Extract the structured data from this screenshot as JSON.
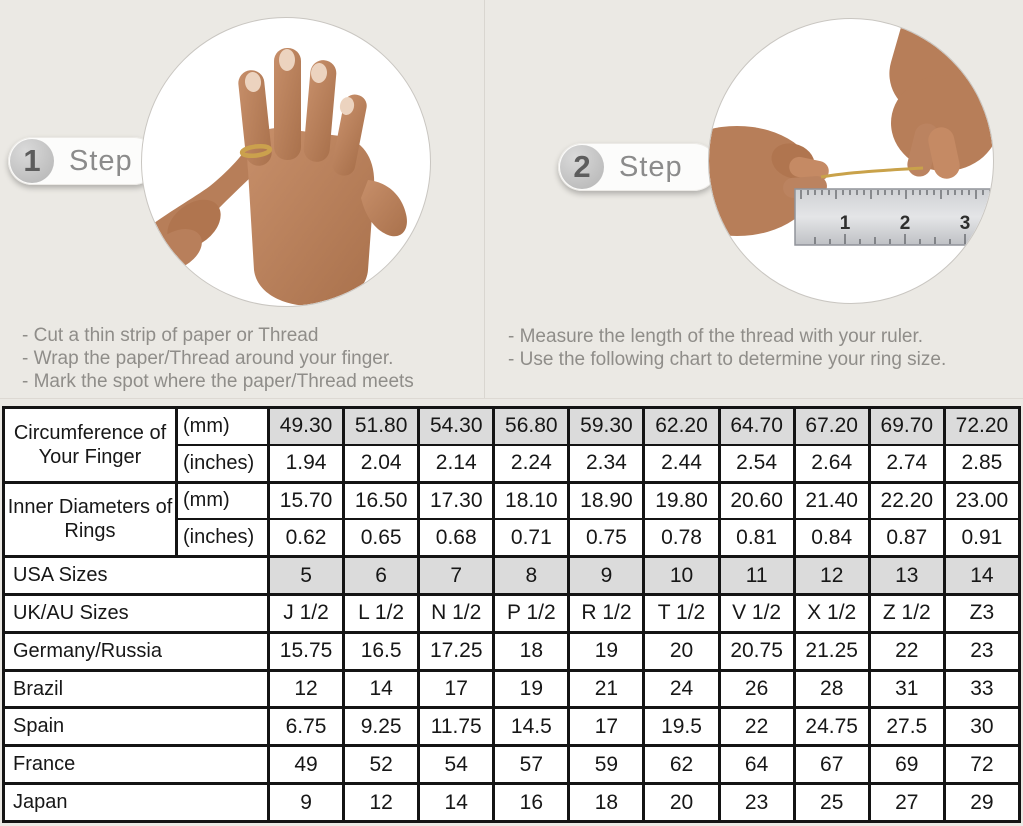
{
  "steps": [
    {
      "number": "1",
      "label": "Step",
      "instructions": [
        "-  Cut a thin strip of paper or Thread",
        "-  Wrap the paper/Thread around your finger.",
        "-  Mark the spot where the paper/Thread meets"
      ]
    },
    {
      "number": "2",
      "label": "Step",
      "instructions": [
        "-  Measure the length of the thread with your ruler.",
        "-  Use the following chart to determine your ring size."
      ]
    }
  ],
  "illustrations": {
    "step1": {
      "name": "hand-with-ring-photo"
    },
    "step2": {
      "name": "hands-measuring-thread-on-ruler-photo",
      "ruler_numbers": [
        "1",
        "2",
        "3"
      ]
    }
  },
  "table": {
    "rows": [
      {
        "label": "Circumference of Your Finger",
        "label_rowspan": 2,
        "center": true,
        "unit": "(mm)",
        "shaded": true,
        "thin_bottom": true,
        "values": [
          "49.30",
          "51.80",
          "54.30",
          "56.80",
          "59.30",
          "62.20",
          "64.70",
          "67.20",
          "69.70",
          "72.20"
        ]
      },
      {
        "unit": "(inches)",
        "thin_top": true,
        "values": [
          "1.94",
          "2.04",
          "2.14",
          "2.24",
          "2.34",
          "2.44",
          "2.54",
          "2.64",
          "2.74",
          "2.85"
        ]
      },
      {
        "label": "Inner Diameters of Rings",
        "label_rowspan": 2,
        "center": true,
        "unit": "(mm)",
        "thin_bottom": true,
        "values": [
          "15.70",
          "16.50",
          "17.30",
          "18.10",
          "18.90",
          "19.80",
          "20.60",
          "21.40",
          "22.20",
          "23.00"
        ]
      },
      {
        "unit": "(inches)",
        "thin_top": true,
        "values": [
          "0.62",
          "0.65",
          "0.68",
          "0.71",
          "0.75",
          "0.78",
          "0.81",
          "0.84",
          "0.87",
          "0.91"
        ]
      },
      {
        "label": "USA Sizes",
        "label_colspan": 2,
        "shaded": true,
        "values": [
          "5",
          "6",
          "7",
          "8",
          "9",
          "10",
          "11",
          "12",
          "13",
          "14"
        ]
      },
      {
        "label": "UK/AU Sizes",
        "label_colspan": 2,
        "values": [
          "J 1/2",
          "L 1/2",
          "N 1/2",
          "P 1/2",
          "R 1/2",
          "T 1/2",
          "V 1/2",
          "X 1/2",
          "Z 1/2",
          "Z3"
        ]
      },
      {
        "label": "Germany/Russia",
        "label_colspan": 2,
        "values": [
          "15.75",
          "16.5",
          "17.25",
          "18",
          "19",
          "20",
          "20.75",
          "21.25",
          "22",
          "23"
        ]
      },
      {
        "label": "Brazil",
        "label_colspan": 2,
        "values": [
          "12",
          "14",
          "17",
          "19",
          "21",
          "24",
          "26",
          "28",
          "31",
          "33"
        ]
      },
      {
        "label": "Spain",
        "label_colspan": 2,
        "values": [
          "6.75",
          "9.25",
          "11.75",
          "14.5",
          "17",
          "19.5",
          "22",
          "24.75",
          "27.5",
          "30"
        ]
      },
      {
        "label": "France",
        "label_colspan": 2,
        "values": [
          "49",
          "52",
          "54",
          "57",
          "59",
          "62",
          "64",
          "67",
          "69",
          "72"
        ]
      },
      {
        "label": "Japan",
        "label_colspan": 2,
        "values": [
          "9",
          "12",
          "14",
          "16",
          "18",
          "20",
          "23",
          "25",
          "27",
          "29"
        ]
      }
    ]
  },
  "colors": {
    "background": "#ebe9e4",
    "shaded_cell": "#dbdbdb",
    "table_border": "#141414",
    "gold_thread": "#c9a24a",
    "instruction_text": "#8f8d89"
  }
}
